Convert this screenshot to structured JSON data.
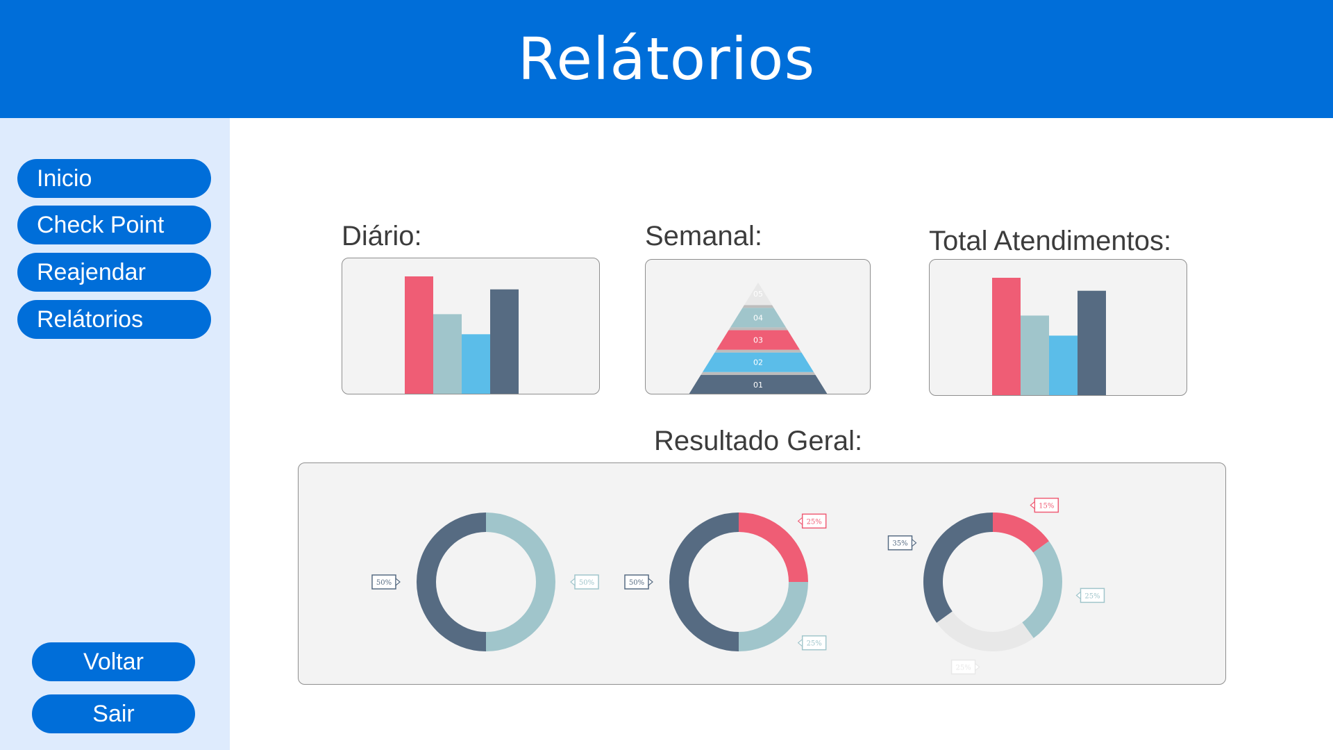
{
  "header": {
    "title": "Relátorios"
  },
  "sidebar": {
    "nav": [
      {
        "label": "Inicio"
      },
      {
        "label": "Check Point"
      },
      {
        "label": "Reajendar"
      },
      {
        "label": "Relátorios"
      }
    ],
    "bottom": [
      {
        "label": "Voltar"
      },
      {
        "label": "Sair"
      }
    ]
  },
  "sections": {
    "daily": "Diário:",
    "weekly": "Semanal:",
    "total": "Total Atendimentos:",
    "overall": "Resultado Geral:"
  },
  "colors": {
    "primary": "#006ed9",
    "red": "#ef5d75",
    "teal": "#a0c5cb",
    "blue": "#5bbde9",
    "slate": "#566b82",
    "light": "#e8e8e8"
  },
  "chart_data": [
    {
      "type": "bar",
      "id": "daily",
      "values": [
        100,
        68,
        51,
        89
      ],
      "ylim": [
        0,
        100
      ],
      "colors": [
        "#ef5d75",
        "#a0c5cb",
        "#5bbde9",
        "#566b82"
      ]
    },
    {
      "type": "pyramid",
      "id": "weekly",
      "levels": [
        "01",
        "02",
        "03",
        "04",
        "05"
      ],
      "colors": [
        "#566b82",
        "#5bbde9",
        "#ef5d75",
        "#a0c5cb",
        "#e8e8e8"
      ]
    },
    {
      "type": "bar",
      "id": "total",
      "values": [
        100,
        68,
        51,
        89
      ],
      "ylim": [
        0,
        100
      ],
      "colors": [
        "#ef5d75",
        "#a0c5cb",
        "#5bbde9",
        "#566b82"
      ]
    },
    {
      "type": "pie",
      "id": "donut-1",
      "slices": [
        {
          "value": 50,
          "label": "50%",
          "color": "#a0c5cb"
        },
        {
          "value": 50,
          "label": "50%",
          "color": "#566b82"
        }
      ]
    },
    {
      "type": "pie",
      "id": "donut-2",
      "slices": [
        {
          "value": 25,
          "label": "25%",
          "color": "#ef5d75"
        },
        {
          "value": 25,
          "label": "25%",
          "color": "#a0c5cb"
        },
        {
          "value": 50,
          "label": "50%",
          "color": "#566b82"
        }
      ]
    },
    {
      "type": "pie",
      "id": "donut-3",
      "slices": [
        {
          "value": 15,
          "label": "15%",
          "color": "#ef5d75"
        },
        {
          "value": 25,
          "label": "25%",
          "color": "#a0c5cb"
        },
        {
          "value": 25,
          "label": "25%",
          "color": "#e8e8e8"
        },
        {
          "value": 35,
          "label": "35%",
          "color": "#566b82"
        }
      ]
    }
  ]
}
